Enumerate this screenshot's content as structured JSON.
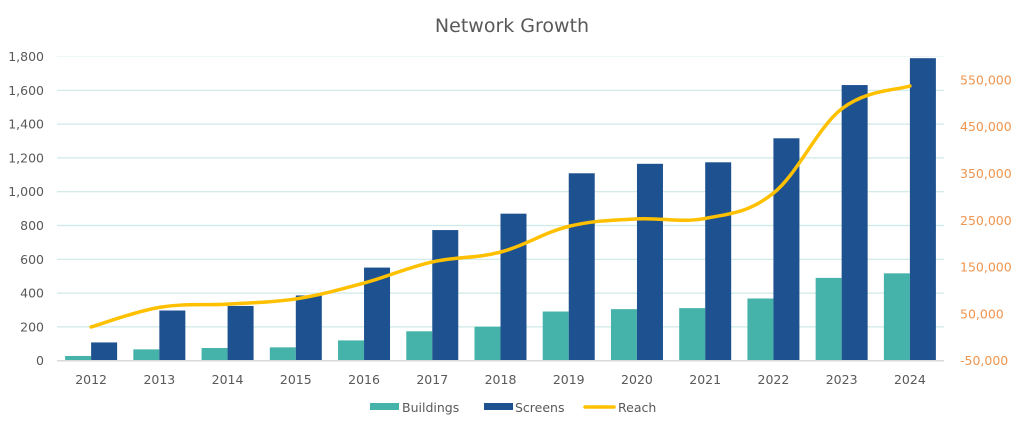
{
  "chart_data": {
    "type": "bar",
    "title": "Network Growth",
    "xlabel": "",
    "ylabel": "",
    "y2label": "",
    "categories": [
      "2012",
      "2013",
      "2014",
      "2015",
      "2016",
      "2017",
      "2018",
      "2019",
      "2020",
      "2021",
      "2022",
      "2023",
      "2024"
    ],
    "series": [
      {
        "name": "Buildings",
        "type": "bar",
        "axis": "left",
        "color": "#45B3A9",
        "values": [
          28,
          67,
          75,
          79,
          120,
          174,
          201,
          291,
          305,
          311,
          368,
          490,
          517
        ]
      },
      {
        "name": "Screens",
        "type": "bar",
        "axis": "left",
        "color": "#1D518F",
        "values": [
          108,
          297,
          324,
          386,
          551,
          773,
          870,
          1109,
          1165,
          1174,
          1316,
          1631,
          1790
        ]
      },
      {
        "name": "Reach",
        "type": "line",
        "axis": "right",
        "color": "#FFC000",
        "smooth": true,
        "values": [
          22000,
          64000,
          71000,
          82000,
          116000,
          161000,
          182000,
          237000,
          253000,
          254000,
          308000,
          488000,
          537000
        ]
      }
    ],
    "ylim": [
      0,
      1800
    ],
    "y2lim": [
      -50000,
      600000
    ],
    "yticks": [
      "0",
      "200",
      "400",
      "600",
      "800",
      "1,000",
      "1,200",
      "1,400",
      "1,600",
      "1,800"
    ],
    "ytick_values": [
      0,
      200,
      400,
      600,
      800,
      1000,
      1200,
      1400,
      1600,
      1800
    ],
    "y2ticks": [
      "-50,000",
      "50,000",
      "150,000",
      "250,000",
      "350,000",
      "450,000",
      "550,000"
    ],
    "y2tick_values": [
      -50000,
      50000,
      150000,
      250000,
      350000,
      450000,
      550000
    ],
    "y2_color": "#F0954F",
    "grid": true,
    "grid_color": "#CDEAE7",
    "legend": {
      "position": "bottom",
      "entries": [
        "Buildings",
        "Screens",
        "Reach"
      ]
    }
  }
}
